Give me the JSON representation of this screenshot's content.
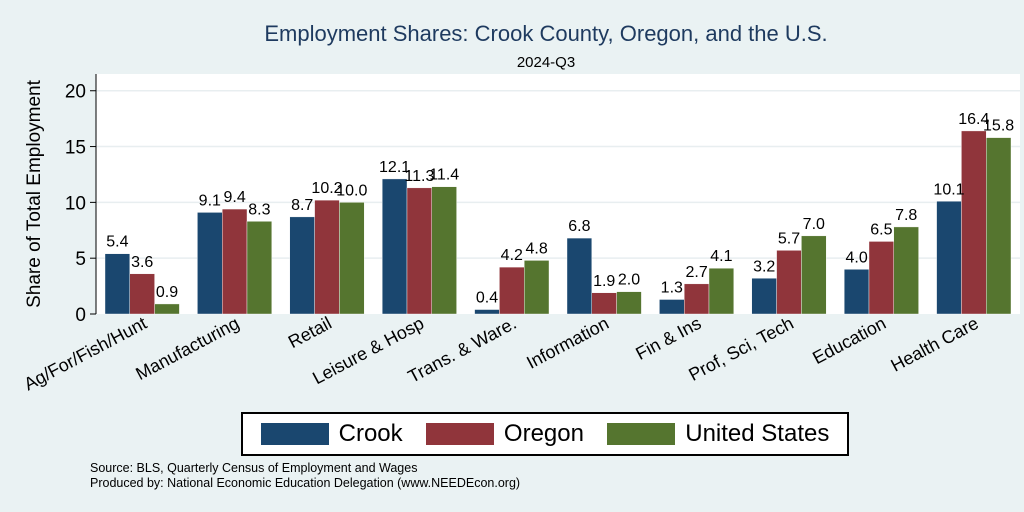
{
  "chart_data": {
    "type": "bar",
    "title": "Employment Shares: Crook County, Oregon, and the U.S.",
    "subtitle": "2024-Q3",
    "ylabel": "Share of Total Employment",
    "xlabel": "",
    "ylim": [
      0,
      21.5
    ],
    "yticks": [
      0,
      5,
      10,
      15,
      20
    ],
    "grid": true,
    "legend_position": "bottom",
    "categories": [
      "Ag/For/Fish/Hunt",
      "Manufacturing",
      "Retail",
      "Leisure & Hosp",
      "Trans. & Ware.",
      "Information",
      "Fin & Ins",
      "Prof, Sci, Tech",
      "Education",
      "Health Care"
    ],
    "series": [
      {
        "name": "Crook",
        "color": "#1a476f",
        "values": [
          5.4,
          9.1,
          8.7,
          12.1,
          0.4,
          6.8,
          1.3,
          3.2,
          4.0,
          10.1
        ]
      },
      {
        "name": "Oregon",
        "color": "#90353b",
        "values": [
          3.6,
          9.4,
          10.2,
          11.3,
          4.2,
          1.9,
          2.7,
          5.7,
          6.5,
          16.4
        ]
      },
      {
        "name": "United States",
        "color": "#55752f",
        "values": [
          0.9,
          8.3,
          10.0,
          11.4,
          4.8,
          2.0,
          4.1,
          7.0,
          7.8,
          15.8
        ]
      }
    ]
  },
  "footer": {
    "source": "Source: BLS, Quarterly Census of Employment and Wages",
    "produced": "Produced by: National Economic Education Delegation (www.NEEDEcon.org)"
  }
}
